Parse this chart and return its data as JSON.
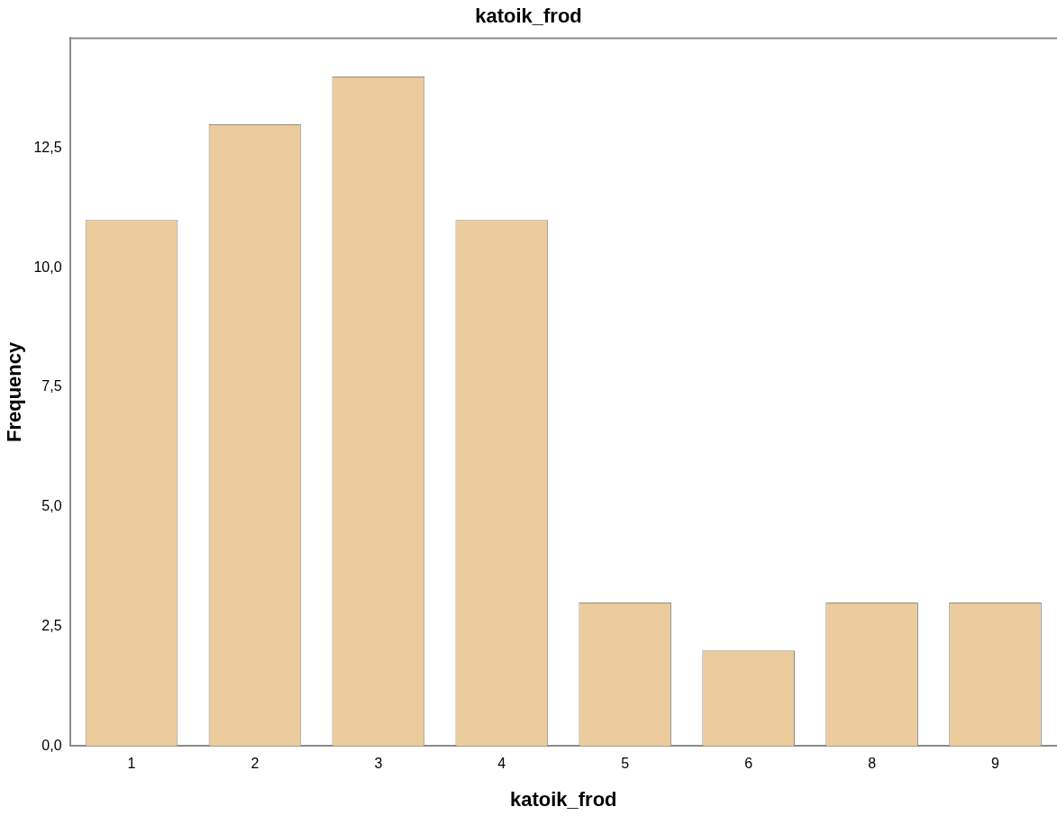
{
  "chart_data": {
    "type": "bar",
    "title": "katoik_frod",
    "xlabel": "katoik_frod",
    "ylabel": "Frequency",
    "categories": [
      "1",
      "2",
      "3",
      "4",
      "5",
      "6",
      "8",
      "9"
    ],
    "values": [
      11,
      13,
      14,
      11,
      3,
      2,
      3,
      3
    ],
    "color": "#eccb9c",
    "ylim": [
      0,
      14.8
    ],
    "yticks": [
      {
        "value": 0,
        "label": "0,0"
      },
      {
        "value": 2.5,
        "label": "2,5"
      },
      {
        "value": 5,
        "label": "5,0"
      },
      {
        "value": 7.5,
        "label": "7,5"
      },
      {
        "value": 10,
        "label": "10,0"
      },
      {
        "value": 12.5,
        "label": "12,5"
      }
    ],
    "grid": false,
    "legend": false
  }
}
